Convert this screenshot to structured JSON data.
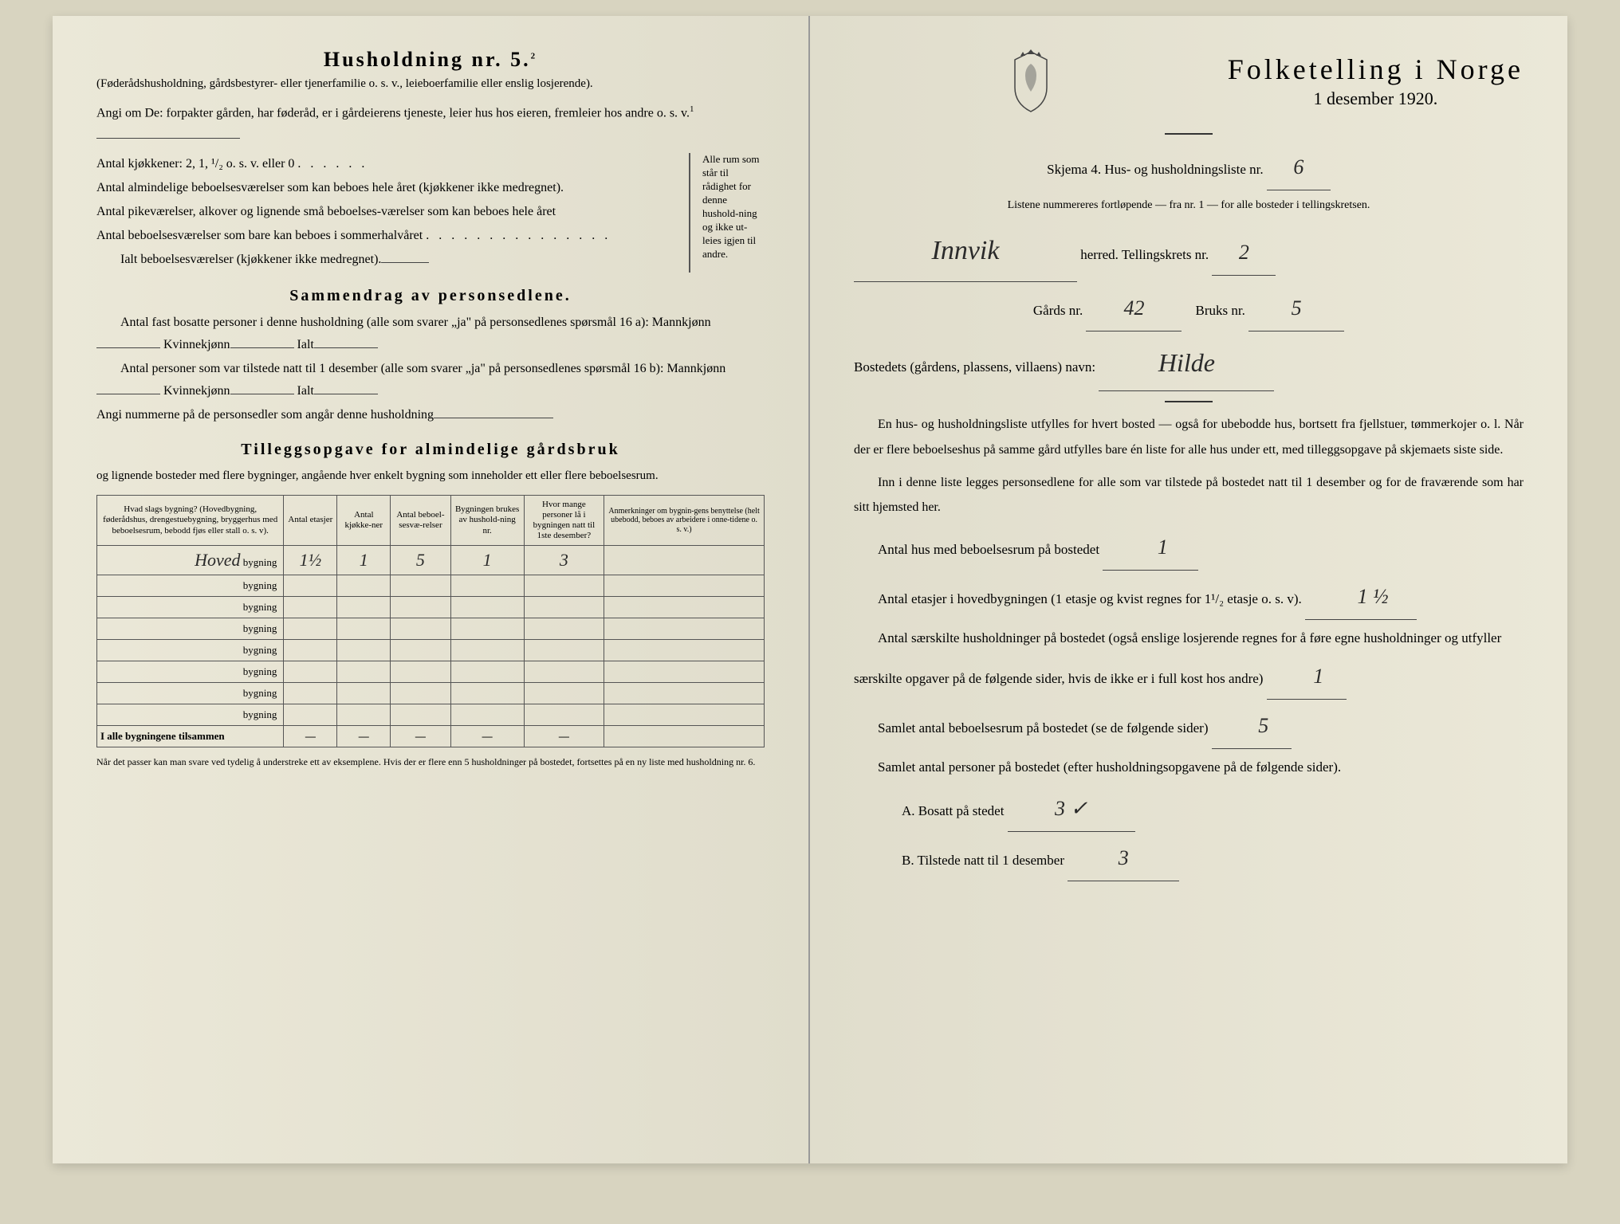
{
  "left": {
    "title": "Husholdning nr. 5.",
    "title_sup": "2",
    "subtitle": "(Føderådshusholdning, gårdsbestyrer- eller tjenerfamilie o. s. v., leieboerfamilie eller enslig losjerende).",
    "angi_line": "Angi om De: forpakter gården, har føderåd, er i gårdeierens tjeneste, leier hus hos eieren, fremleier hos andre o. s. v.",
    "angi_sup": "1",
    "kitchen_line": "Antal kjøkkener: 2, 1, ¹/₂ o. s. v. eller 0",
    "room_lines": [
      "Antal almindelige beboelsesværelser som kan beboes hele året (kjøkkener ikke medregnet).",
      "Antal pikeværelser, alkover og lignende små beboelses-værelser som kan beboes hele året",
      "Antal beboelsesværelser som bare kan beboes i sommerhalvåret"
    ],
    "room_total": "Ialt beboelsesværelser (kjøkkener ikke medregnet).",
    "bracket_note": "Alle rum som står til rådighet for denne hushold-ning og ikke ut-leies igjen til andre.",
    "summary_title": "Sammendrag av personsedlene.",
    "summary_line1_a": "Antal fast bosatte personer i denne husholdning (alle som svarer „ja\" på personsedlenes spørsmål 16 a): Mannkjønn",
    "summary_line1_b": "Kvinnekjønn",
    "summary_line1_c": "Ialt",
    "summary_line2_a": "Antal personer som var tilstede natt til 1 desember (alle som svarer „ja\" på personsedlenes spørsmål 16 b): Mannkjønn",
    "summary_line2_b": "Kvinnekjønn",
    "summary_line2_c": "Ialt",
    "summary_line3": "Angi nummerne på de personsedler som angår denne husholdning",
    "tillegg_title": "Tilleggsopgave for almindelige gårdsbruk",
    "tillegg_sub": "og lignende bosteder med flere bygninger, angående hver enkelt bygning som inneholder ett eller flere beboelsesrum.",
    "table": {
      "headers": [
        "Hvad slags bygning?\n(Hovedbygning, føderådshus, drengestuebygning, bryggerhus med beboelsesrum, bebodd fjøs eller stall o. s. v).",
        "Antal etasjer",
        "Antal kjøkke-ner",
        "Antal beboel-sesvæ-relser",
        "Bygningen brukes av hushold-ning nr.",
        "Hvor mange personer lå i bygningen natt til 1ste desember?",
        "Anmerkninger om bygnin-gens benyttelse (helt ubebodd, beboes av arbeidere i onne-tidene o. s. v.)"
      ],
      "first_row_handwritten": "Hoved",
      "row_label": "bygning",
      "first_row_values": [
        "1½",
        "1",
        "5",
        "1",
        "3",
        ""
      ],
      "empty_rows": 7,
      "total_label": "I alle bygningene tilsammen",
      "dash": "—"
    },
    "footnote": "Når det passer kan man svare ved tydelig å understreke ett av eksemplene.\nHvis der er flere enn 5 husholdninger på bostedet, fortsettes på en ny liste med husholdning nr. 6."
  },
  "right": {
    "main_title": "Folketelling i Norge",
    "date": "1 desember 1920.",
    "skjema_a": "Skjema 4.  Hus- og husholdningsliste nr.",
    "skjema_val": "6",
    "listene": "Listene nummereres fortløpende — fra nr. 1 — for alle bosteder i tellingskretsen.",
    "herred_handwritten": "Innvik",
    "herred_label": "herred.   Tellingskrets nr.",
    "tellingskrets_val": "2",
    "gards_label": "Gårds nr.",
    "gards_val": "42",
    "bruks_label": "Bruks nr.",
    "bruks_val": "5",
    "bosted_label": "Bostedets (gårdens, plassens, villaens) navn:",
    "bosted_val": "Hilde",
    "para1": "En hus- og husholdningsliste utfylles for hvert bosted — også for ubebodde hus, bortsett fra fjellstuer, tømmerkojer o. l.  Når der er flere beboelseshus på samme gård utfylles bare én liste for alle hus under ett, med tilleggsopgave på skjemaets siste side.",
    "para2": "Inn i denne liste legges personsedlene for alle som var tilstede på bostedet natt til 1 desember og for de fraværende som har sitt hjemsted her.",
    "q1": "Antal hus med beboelsesrum på bostedet",
    "q1_val": "1",
    "q2": "Antal etasjer i hovedbygningen (1 etasje og kvist regnes for 1¹/₂ etasje o. s. v).",
    "q2_val": "1 ½",
    "q3": "Antal særskilte husholdninger på bostedet (også enslige losjerende regnes for å føre egne husholdninger og utfyller særskilte opgaver på de følgende sider, hvis de ikke er i full kost hos andre)",
    "q3_val": "1",
    "q4": "Samlet antal beboelsesrum på bostedet (se de følgende sider)",
    "q4_val": "5",
    "q5": "Samlet antal personer på bostedet (efter husholdningsopgavene på de følgende sider).",
    "q5a_label": "A.  Bosatt på stedet",
    "q5a_val": "3 ✓",
    "q5b_label": "B.  Tilstede natt til 1 desember",
    "q5b_val": "3"
  }
}
